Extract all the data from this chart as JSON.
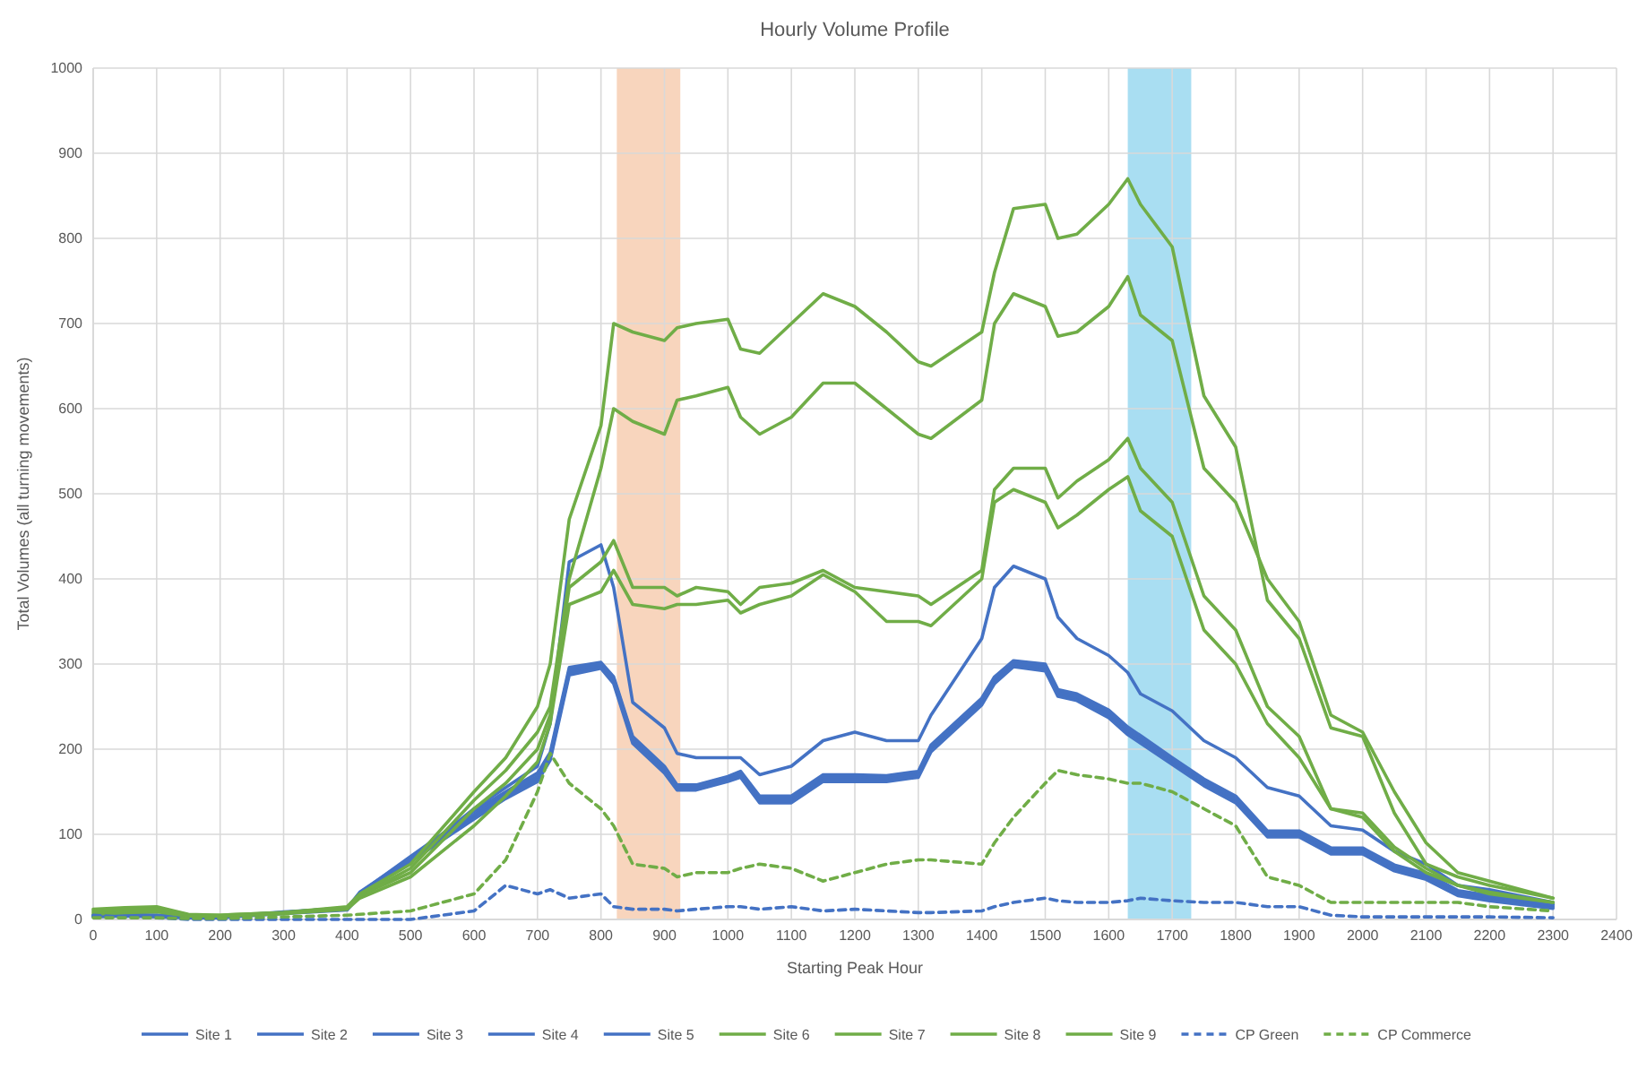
{
  "chart_data": {
    "type": "line",
    "title": "Hourly Volume Profile",
    "xlabel": "Starting Peak Hour",
    "ylabel": "Total Volumes (all turning movements)",
    "x": [
      0,
      50,
      100,
      150,
      200,
      300,
      400,
      420,
      500,
      600,
      650,
      700,
      720,
      750,
      800,
      820,
      850,
      900,
      920,
      950,
      1000,
      1020,
      1050,
      1100,
      1150,
      1200,
      1250,
      1300,
      1320,
      1400,
      1420,
      1450,
      1500,
      1520,
      1550,
      1600,
      1630,
      1650,
      1700,
      1750,
      1800,
      1850,
      1900,
      1950,
      2000,
      2050,
      2100,
      2150,
      2200,
      2300
    ],
    "xlim": [
      0,
      2400
    ],
    "xticks": [
      0,
      100,
      200,
      300,
      400,
      500,
      600,
      700,
      800,
      900,
      1000,
      1100,
      1200,
      1300,
      1400,
      1500,
      1600,
      1700,
      1800,
      1900,
      2000,
      2100,
      2200,
      2300,
      2400
    ],
    "ylim": [
      0,
      1000
    ],
    "yticks": [
      0,
      100,
      200,
      300,
      400,
      500,
      600,
      700,
      800,
      900,
      1000
    ],
    "grid": true,
    "legend": "bottom",
    "line_style": "solid",
    "bands": [
      {
        "axis": "x",
        "from": 825,
        "to": 925,
        "color": "#f8d5bd"
      },
      {
        "axis": "x",
        "from": 1630,
        "to": 1730,
        "color": "#a9def2"
      }
    ],
    "series": [
      {
        "name": "Site 1",
        "color": "#4472c4",
        "values": [
          4,
          5,
          4,
          3,
          3,
          8,
          12,
          30,
          70,
          120,
          145,
          165,
          190,
          290,
          298,
          280,
          210,
          175,
          155,
          155,
          165,
          170,
          140,
          140,
          165,
          165,
          165,
          170,
          200,
          255,
          280,
          300,
          295,
          265,
          260,
          240,
          220,
          210,
          185,
          160,
          140,
          100,
          100,
          80,
          80,
          60,
          50,
          30,
          25,
          15
        ]
      },
      {
        "name": "Site 2",
        "color": "#4472c4",
        "values": [
          5,
          6,
          4,
          3,
          3,
          9,
          13,
          32,
          72,
          123,
          148,
          168,
          193,
          293,
          300,
          283,
          213,
          178,
          157,
          157,
          167,
          172,
          143,
          143,
          168,
          168,
          167,
          173,
          203,
          258,
          283,
          302,
          297,
          268,
          262,
          243,
          223,
          213,
          188,
          163,
          142,
          102,
          102,
          82,
          82,
          62,
          52,
          32,
          27,
          17
        ]
      },
      {
        "name": "Site 3",
        "color": "#4472c4",
        "values": [
          3,
          4,
          3,
          2,
          2,
          7,
          11,
          28,
          68,
          118,
          142,
          162,
          187,
          287,
          295,
          277,
          207,
          172,
          152,
          152,
          162,
          167,
          137,
          137,
          162,
          162,
          162,
          167,
          197,
          252,
          277,
          297,
          292,
          262,
          257,
          237,
          217,
          207,
          182,
          157,
          137,
          97,
          97,
          77,
          77,
          57,
          47,
          28,
          22,
          13
        ]
      },
      {
        "name": "Site 4",
        "color": "#4472c4",
        "values": [
          4,
          5,
          5,
          3,
          3,
          8,
          12,
          31,
          74,
          127,
          150,
          172,
          196,
          296,
          302,
          285,
          215,
          180,
          158,
          158,
          168,
          174,
          145,
          145,
          170,
          170,
          169,
          174,
          205,
          260,
          285,
          304,
          300,
          270,
          265,
          246,
          226,
          216,
          190,
          165,
          145,
          104,
          104,
          84,
          84,
          64,
          54,
          34,
          28,
          18
        ]
      },
      {
        "name": "Site 5",
        "color": "#4472c4",
        "values": [
          5,
          6,
          5,
          3,
          3,
          8,
          14,
          30,
          70,
          130,
          155,
          180,
          230,
          420,
          440,
          390,
          255,
          225,
          195,
          190,
          190,
          190,
          170,
          180,
          210,
          220,
          210,
          210,
          240,
          330,
          390,
          415,
          400,
          355,
          330,
          310,
          290,
          265,
          245,
          210,
          190,
          155,
          145,
          110,
          105,
          80,
          65,
          40,
          35,
          20
        ]
      },
      {
        "name": "Site 6",
        "color": "#70ad47",
        "values": [
          6,
          8,
          9,
          4,
          4,
          7,
          12,
          25,
          50,
          110,
          145,
          185,
          230,
          370,
          385,
          410,
          370,
          365,
          370,
          370,
          375,
          360,
          370,
          380,
          405,
          385,
          350,
          350,
          345,
          400,
          490,
          505,
          490,
          460,
          475,
          505,
          520,
          480,
          450,
          340,
          300,
          230,
          190,
          130,
          120,
          80,
          55,
          40,
          30,
          20
        ]
      },
      {
        "name": "Site 7",
        "color": "#70ad47",
        "values": [
          12,
          14,
          15,
          6,
          5,
          8,
          14,
          28,
          55,
          130,
          160,
          200,
          240,
          390,
          420,
          445,
          390,
          390,
          380,
          390,
          385,
          370,
          390,
          395,
          410,
          390,
          385,
          380,
          370,
          410,
          505,
          530,
          530,
          495,
          515,
          540,
          565,
          530,
          490,
          380,
          340,
          250,
          215,
          130,
          125,
          85,
          60,
          40,
          32,
          20
        ]
      },
      {
        "name": "Site 8",
        "color": "#70ad47",
        "values": [
          8,
          10,
          10,
          4,
          4,
          7,
          14,
          28,
          60,
          140,
          175,
          220,
          250,
          400,
          530,
          600,
          585,
          570,
          610,
          615,
          625,
          590,
          570,
          590,
          630,
          630,
          600,
          570,
          565,
          610,
          700,
          735,
          720,
          685,
          690,
          720,
          755,
          710,
          680,
          530,
          490,
          400,
          350,
          240,
          220,
          150,
          90,
          55,
          45,
          25
        ]
      },
      {
        "name": "Site 9",
        "color": "#70ad47",
        "values": [
          10,
          12,
          12,
          5,
          5,
          8,
          15,
          30,
          65,
          150,
          190,
          250,
          300,
          470,
          580,
          700,
          690,
          680,
          695,
          700,
          705,
          670,
          665,
          700,
          735,
          720,
          690,
          655,
          650,
          690,
          760,
          835,
          840,
          800,
          805,
          840,
          870,
          840,
          790,
          615,
          555,
          375,
          330,
          225,
          215,
          125,
          65,
          50,
          40,
          25
        ]
      },
      {
        "name": "CP Green",
        "color": "#4472c4",
        "line_style": "dashed",
        "values": [
          5,
          3,
          2,
          0,
          0,
          0,
          0,
          0,
          0,
          10,
          40,
          30,
          35,
          25,
          30,
          15,
          12,
          12,
          10,
          12,
          15,
          15,
          12,
          15,
          10,
          12,
          10,
          8,
          8,
          10,
          15,
          20,
          25,
          22,
          20,
          20,
          22,
          25,
          22,
          20,
          20,
          15,
          15,
          5,
          3,
          3,
          3,
          3,
          3,
          2
        ]
      },
      {
        "name": "CP Commerce",
        "color": "#70ad47",
        "line_style": "dashed",
        "values": [
          2,
          2,
          2,
          1,
          1,
          3,
          5,
          6,
          10,
          30,
          70,
          150,
          195,
          160,
          130,
          110,
          65,
          60,
          50,
          55,
          55,
          60,
          65,
          60,
          45,
          55,
          65,
          70,
          70,
          65,
          90,
          120,
          160,
          175,
          170,
          165,
          160,
          160,
          150,
          130,
          110,
          50,
          40,
          20,
          20,
          20,
          20,
          20,
          15,
          10
        ]
      }
    ]
  }
}
